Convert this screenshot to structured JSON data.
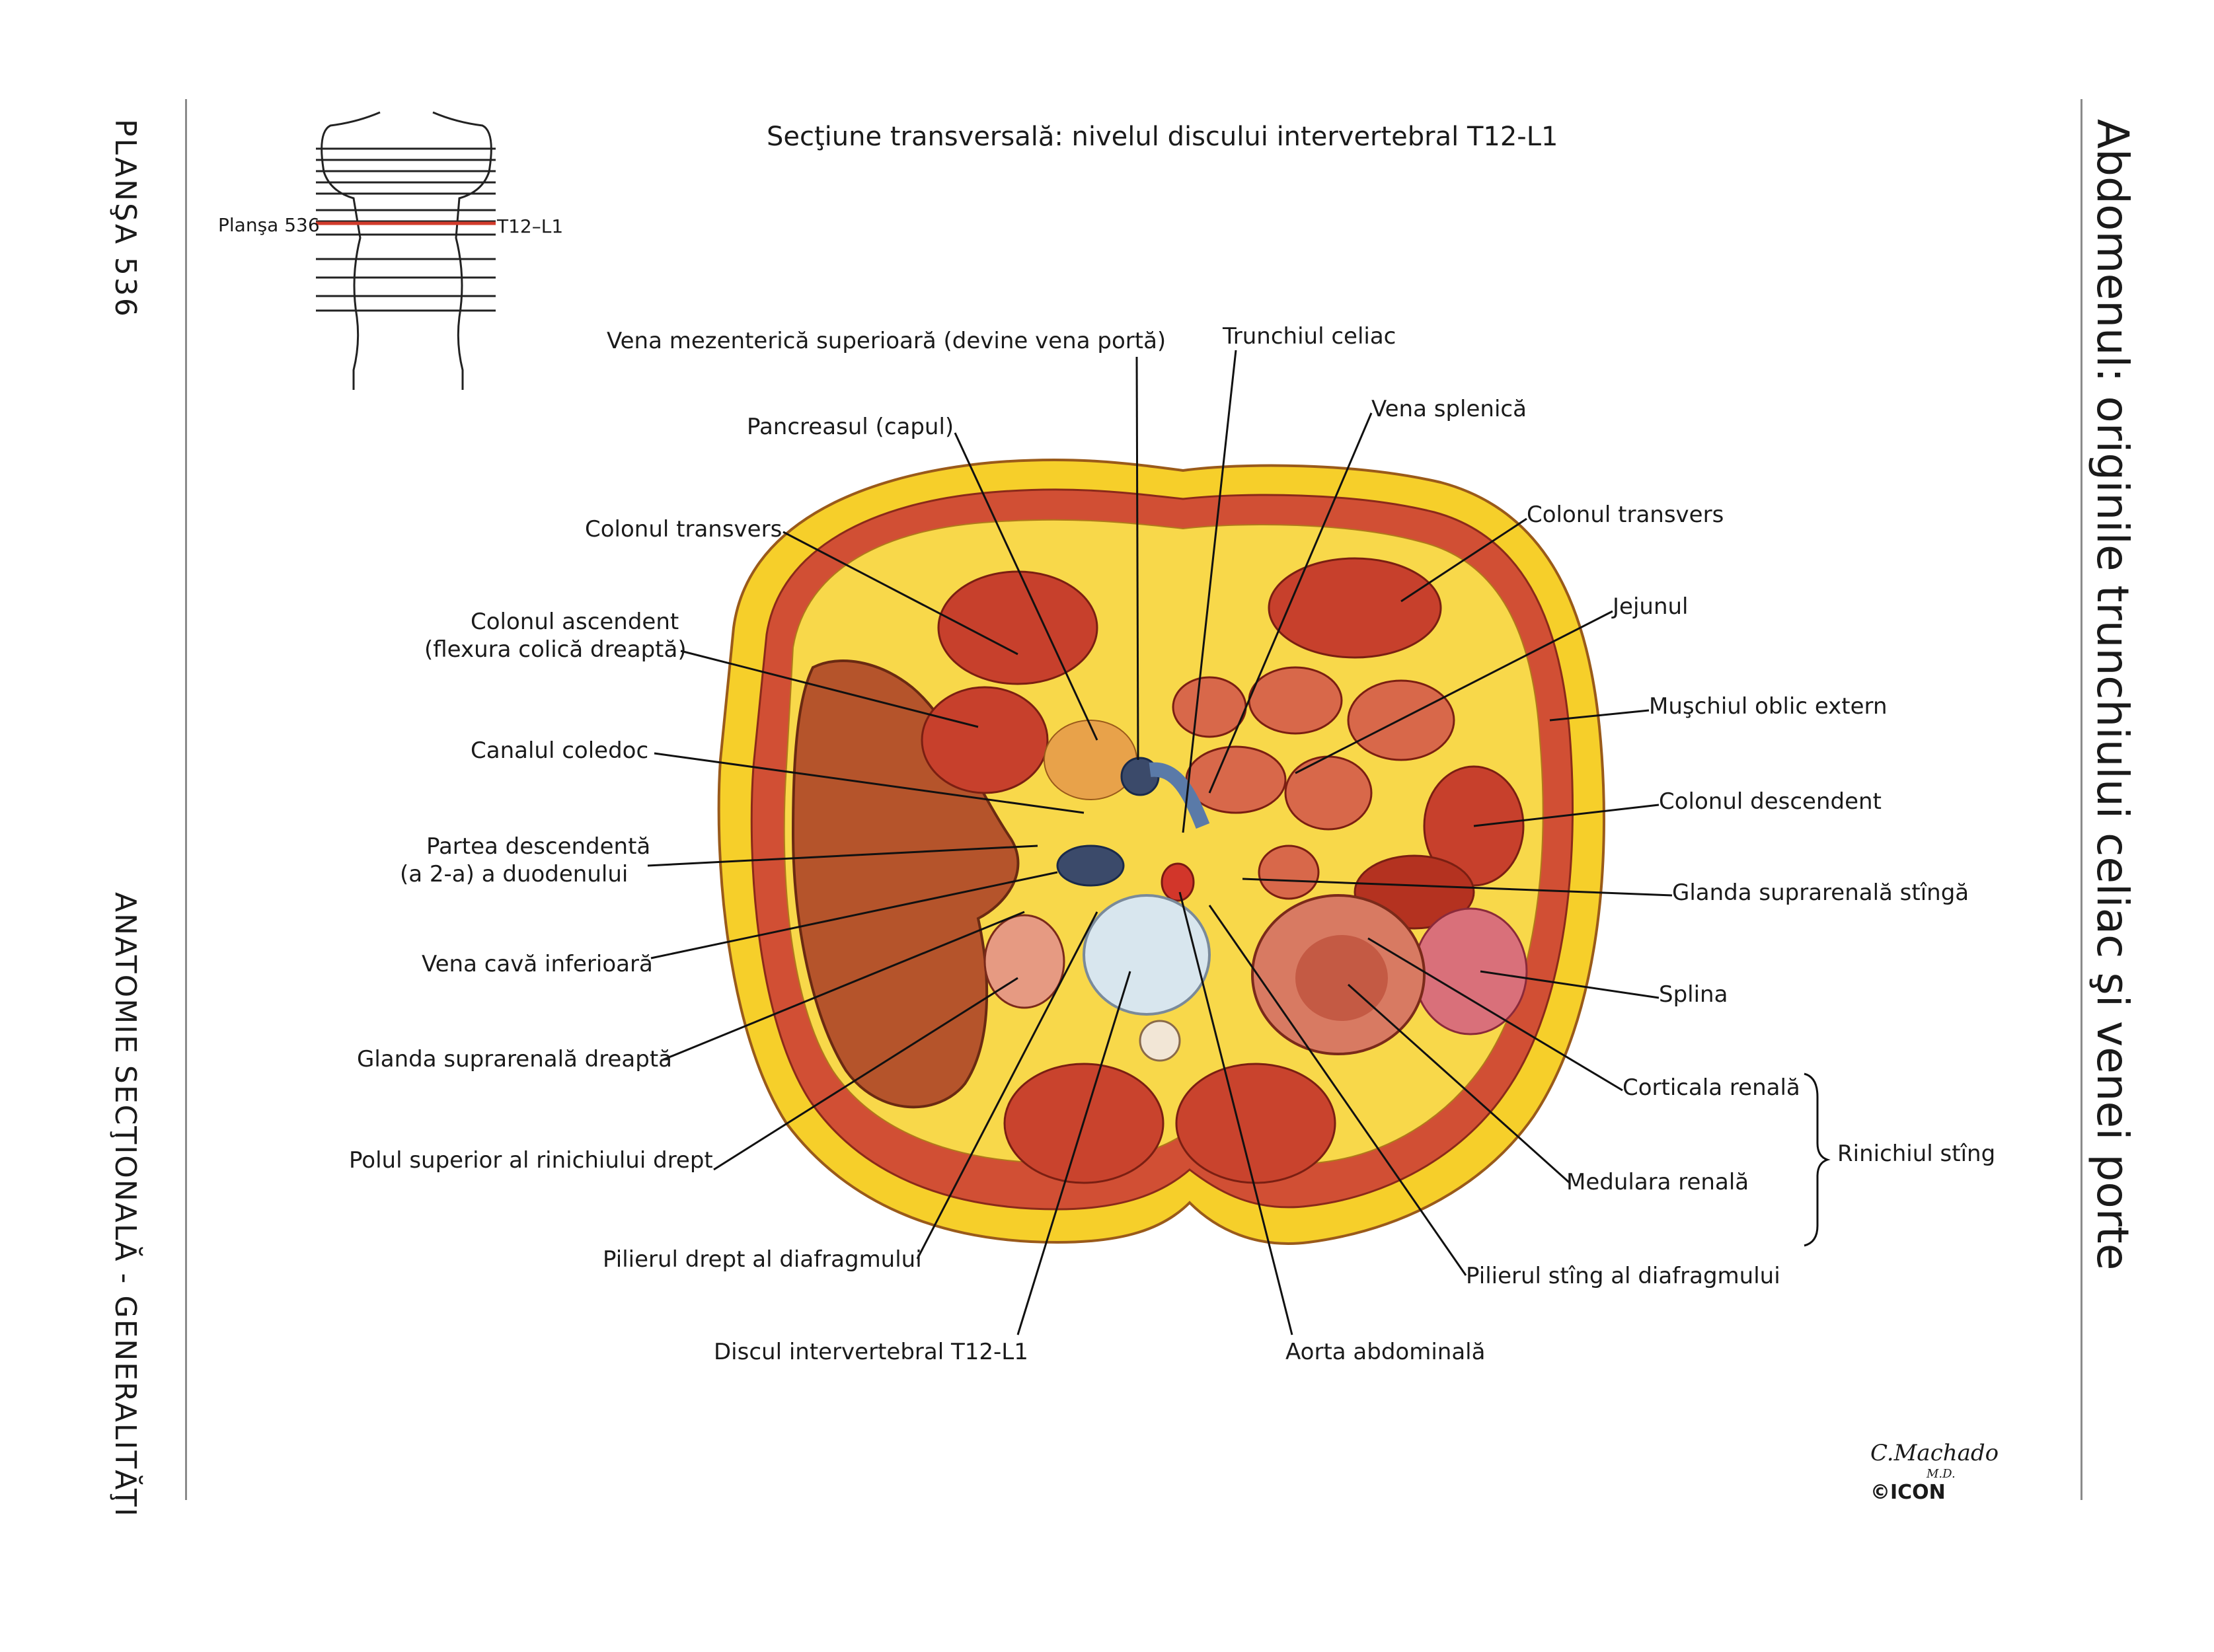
{
  "left_margin": {
    "plate": "PLANŞA 536",
    "series": "ANATOMIE SECŢIONALĂ - GENERALITĂŢI"
  },
  "right_margin": {
    "chapter": "Abdomenul: originile trunchiului celiac şi venei porte"
  },
  "header": {
    "title": "Secţiune transversală: nivelul discului intervertebral T12-L1"
  },
  "orientation_figure": {
    "plate_label": "Planşa 536",
    "level_label": "T12–L1"
  },
  "labels": {
    "vena_mezenterica": "Vena mezenterică superioară (devine vena portă)",
    "trunchiul_celiac": "Trunchiul celiac",
    "pancreasul": "Pancreasul (capul)",
    "vena_splenica": "Vena splenică",
    "colonul_transvers_l": "Colonul transvers",
    "colonul_transvers_r": "Colonul transvers",
    "colonul_ascendent_1": "Colonul ascendent",
    "colonul_ascendent_2": "(flexura colică dreaptă)",
    "jejunul": "Jejunul",
    "muschiul_oblic": "Muşchiul oblic extern",
    "canalul_coledoc": "Canalul coledoc",
    "colonul_descendent": "Colonul descendent",
    "duoden_1": "Partea descendentă",
    "duoden_2": "(a 2-a) a duodenului",
    "glanda_supr_stg": "Glanda suprarenală stîngă",
    "vena_cava": "Vena cavă inferioară",
    "splina": "Splina",
    "glanda_supr_dr": "Glanda suprarenală dreaptă",
    "corticala": "Corticala renală",
    "polul_superior": "Polul superior al rinichiului drept",
    "rinichiul_stang": "Rinichiul stîng",
    "medulara": "Medulara renală",
    "pilierul_drept": "Pilierul drept al diafragmului",
    "pilierul_stang": "Pilierul stîng al diafragmului",
    "discul": "Discul intervertebral T12-L1",
    "aorta": "Aorta abdominală"
  },
  "signature": {
    "artist": "C.Machado",
    "degree": "M.D.",
    "publisher": "©ICON"
  },
  "colors": {
    "fat": "#f6cf2a",
    "muscle": "#c9432d",
    "liver": "#b5542b",
    "leader": "#111111",
    "guide_line": "#d23b2b"
  }
}
